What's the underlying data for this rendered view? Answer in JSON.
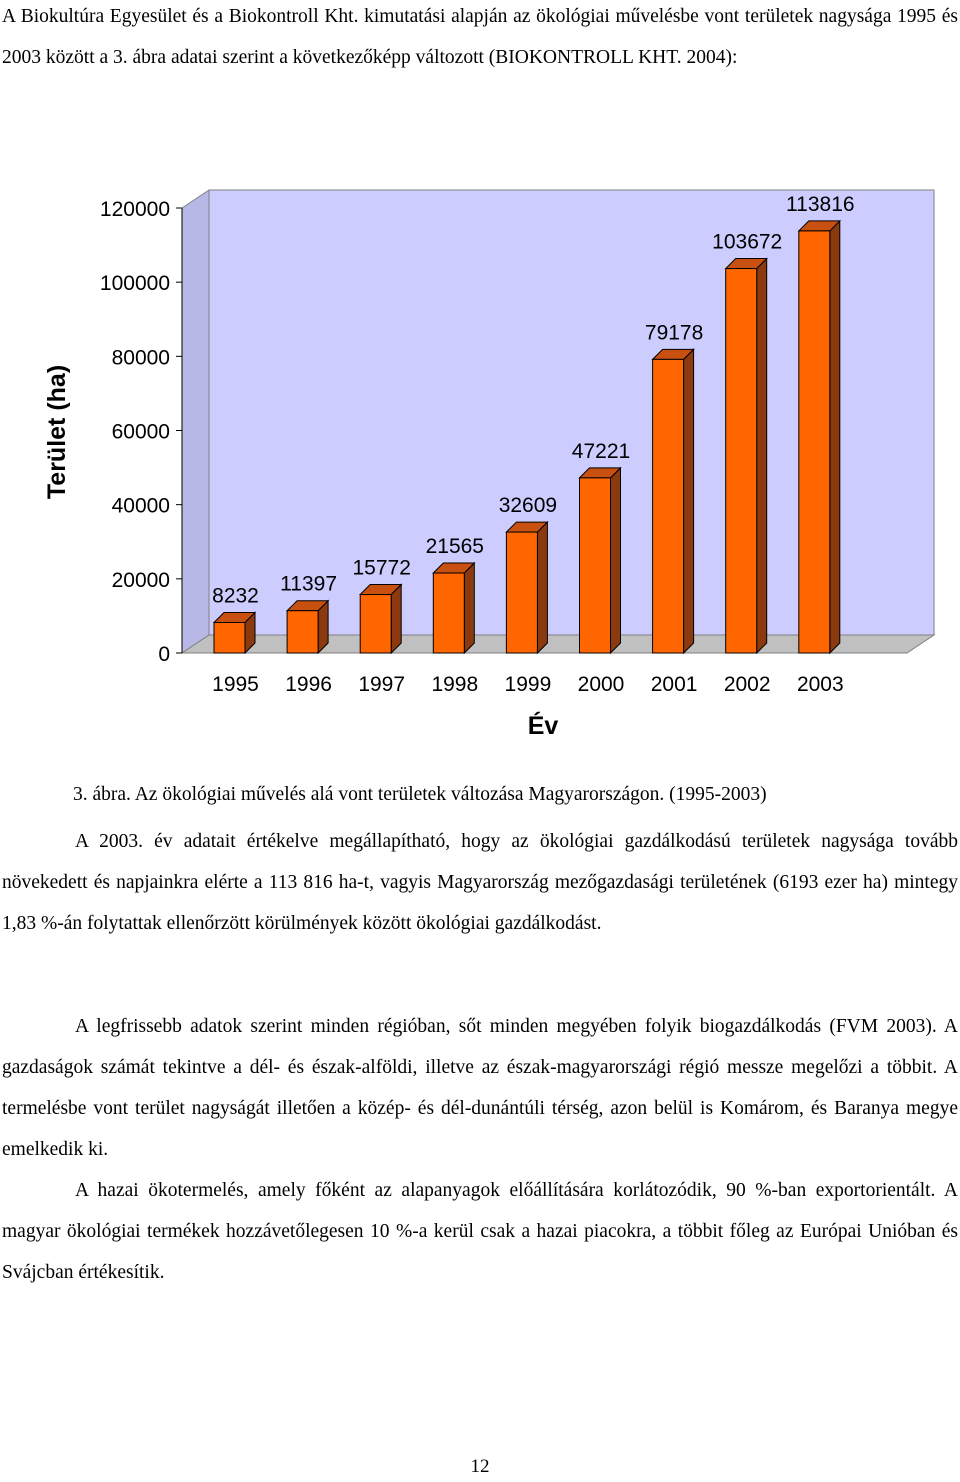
{
  "intro": "A Biokultúra Egyesület és a Biokontroll Kht. kimutatási alapján az ökológiai művelésbe vont területek nagysága 1995 és 2003 között a 3. ábra adatai szerint a következőképp változott (BIOKONTROLL KHT. 2004):",
  "chart_data": {
    "type": "bar",
    "categories": [
      "1995",
      "1996",
      "1997",
      "1998",
      "1999",
      "2000",
      "2001",
      "2002",
      "2003"
    ],
    "values": [
      8232,
      11397,
      15772,
      21565,
      32609,
      47221,
      79178,
      103672,
      113816
    ],
    "data_labels": [
      "8232",
      "11397",
      "15772",
      "21565",
      "32609",
      "47221",
      "79178",
      "103672",
      "113816"
    ],
    "yticks": [
      "0",
      "20000",
      "40000",
      "60000",
      "80000",
      "100000",
      "120000"
    ],
    "ylim": [
      0,
      120000
    ],
    "xlabel": "Év",
    "ylabel": "Terület (ha)",
    "grid": false,
    "colors": {
      "bar_front": "#FF6600",
      "bar_side": "#8B3A10",
      "wall": "#CCCCFF"
    }
  },
  "caption": "3. ábra. Az ökológiai művelés alá vont területek változása Magyarországon. (1995-2003)",
  "paragraphs": [
    "A 2003. év adatait értékelve megállapítható, hogy az ökológiai gazdálkodású területek nagysága tovább növekedett és napjainkra elérte a 113 816 ha-t, vagyis Magyarország mezőgazdasági területének (6193 ezer ha) mintegy 1,83 %-án folytattak ellenőrzött körülmények között ökológiai gazdálkodást.",
    "A legfrissebb adatok szerint minden régióban, sőt minden megyében folyik biogazdálkodás (FVM 2003). A gazdaságok számát tekintve a dél- és észak-alföldi, illetve az észak-magyarországi régió messze megelőzi a többit. A termelésbe vont terület nagyságát illetően a közép- és dél-dunántúli térség, azon belül is Komárom, és Baranya megye emelkedik ki.",
    "A hazai ökotermelés, amely főként az alapanyagok előállítására korlátozódik, 90 %-ban exportorientált. A magyar ökológiai termékek hozzávetőlegesen 10 %-a kerül csak a hazai piacokra, a többit főleg az Európai Unióban és Svájcban értékesítik."
  ],
  "page_number": "12"
}
